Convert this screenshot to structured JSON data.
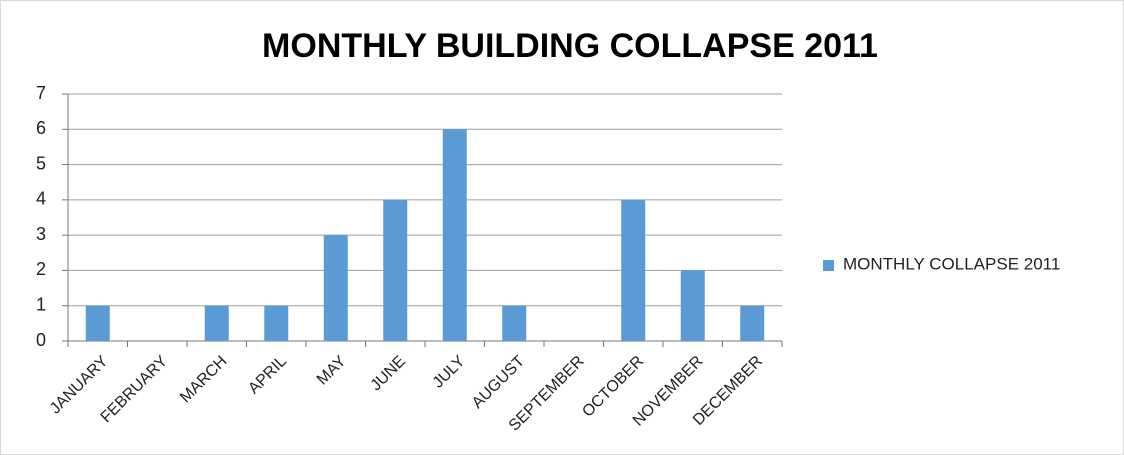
{
  "chart_data": {
    "type": "bar",
    "title": "MONTHLY BUILDING COLLAPSE 2011",
    "categories": [
      "JANUARY",
      "FEBRUARY",
      "MARCH",
      "APRIL",
      "MAY",
      "JUNE",
      "JULY",
      "AUGUST",
      "SEPTEMBER",
      "OCTOBER",
      "NOVEMBER",
      "DECEMBER"
    ],
    "series": [
      {
        "name": "MONTHLY COLLAPSE 2011",
        "color": "#5b9bd5",
        "values": [
          1,
          0,
          1,
          1,
          3,
          4,
          6,
          1,
          0,
          4,
          2,
          1
        ]
      }
    ],
    "ylim": [
      0,
      7
    ],
    "yticks": [
      0,
      1,
      2,
      3,
      4,
      5,
      6,
      7
    ],
    "grid": true,
    "legend": "right"
  }
}
